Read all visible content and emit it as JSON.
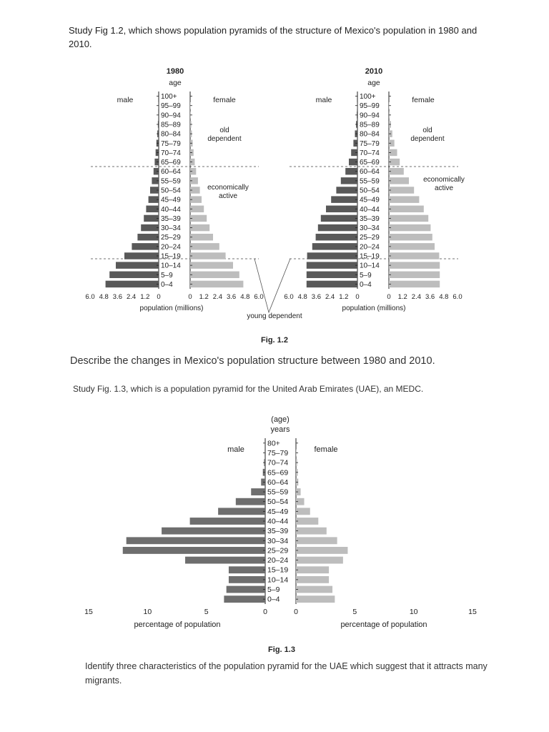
{
  "intro_text": "Study Fig 1.2, which shows population pyramids of the structure of Mexico's population in 1980 and 2010.",
  "question_1": "Describe the changes in Mexico's population structure between 1980 and 2010.",
  "study_2": "Study Fig. 1.3, which is a population pyramid for the United Arab Emirates (UAE), an MEDC.",
  "question_2": "Identify three characteristics of the population pyramid for the UAE which suggest that it attracts many migrants.",
  "fig12": {
    "caption": "Fig. 1.2",
    "age_label": "age",
    "male_label": "male",
    "female_label": "female",
    "old_dependent_1": "old",
    "old_dependent_2": "dependent",
    "econ_active_1": "economically",
    "econ_active_2": "active",
    "young_dependent": "young dependent",
    "xaxis_label": "population (millions)"
  },
  "fig13": {
    "caption": "Fig. 1.3",
    "age_label_1": "(age)",
    "age_label_2": "years",
    "male_label": "male",
    "female_label": "female",
    "xaxis_label": "percentage of population"
  },
  "chart_data": [
    {
      "type": "bar",
      "title": "1980",
      "categories": [
        "100+",
        "95–99",
        "90–94",
        "85–89",
        "80–84",
        "75–79",
        "70–74",
        "65–69",
        "60–64",
        "55–59",
        "50–54",
        "45–49",
        "40–44",
        "35–39",
        "30–34",
        "25–29",
        "20–24",
        "15–19",
        "10–14",
        "5–9",
        "0–4"
      ],
      "series": [
        {
          "name": "male",
          "values": [
            0.0,
            0.02,
            0.04,
            0.07,
            0.12,
            0.2,
            0.27,
            0.35,
            0.45,
            0.6,
            0.75,
            0.9,
            1.1,
            1.3,
            1.55,
            1.85,
            2.35,
            3.0,
            3.75,
            4.3,
            4.65
          ]
        },
        {
          "name": "female",
          "values": [
            0.0,
            0.03,
            0.05,
            0.1,
            0.15,
            0.22,
            0.3,
            0.4,
            0.52,
            0.68,
            0.85,
            1.0,
            1.2,
            1.45,
            1.7,
            2.0,
            2.55,
            3.1,
            3.75,
            4.3,
            4.65
          ]
        }
      ],
      "xticks": [
        "6.0",
        "4.8",
        "3.6",
        "2.4",
        "1.2",
        "0",
        "0",
        "1.2",
        "2.4",
        "3.6",
        "4.8",
        "6.0"
      ],
      "xlim": [
        0,
        6.0
      ],
      "xlabel": "population (millions)"
    },
    {
      "type": "bar",
      "title": "2010",
      "categories": [
        "100+",
        "95–99",
        "90–94",
        "85–89",
        "80–84",
        "75–79",
        "70–74",
        "65–69",
        "60–64",
        "55–59",
        "50–54",
        "45–49",
        "40–44",
        "35–39",
        "30–34",
        "25–29",
        "20–24",
        "15–19",
        "10–14",
        "5–9",
        "0–4"
      ],
      "series": [
        {
          "name": "male",
          "values": [
            0.0,
            0.02,
            0.06,
            0.12,
            0.22,
            0.35,
            0.55,
            0.75,
            1.05,
            1.45,
            1.85,
            2.3,
            2.75,
            3.2,
            3.45,
            3.65,
            3.95,
            4.4,
            4.45,
            4.45,
            4.45
          ]
        },
        {
          "name": "female",
          "values": [
            0.0,
            0.03,
            0.08,
            0.18,
            0.3,
            0.48,
            0.72,
            0.95,
            1.3,
            1.75,
            2.2,
            2.65,
            3.05,
            3.45,
            3.65,
            3.8,
            4.0,
            4.4,
            4.45,
            4.45,
            4.45
          ]
        }
      ],
      "xticks": [
        "6.0",
        "4.8",
        "3.6",
        "2.4",
        "1.2",
        "0",
        "0",
        "1.2",
        "2.4",
        "3.6",
        "4.8",
        "6.0"
      ],
      "xlim": [
        0,
        6.0
      ],
      "xlabel": "population (millions)"
    },
    {
      "type": "bar",
      "title": "",
      "categories": [
        "80+",
        "75–79",
        "70–74",
        "65–69",
        "60–64",
        "55–59",
        "50–54",
        "45–49",
        "40–44",
        "35–39",
        "30–34",
        "25–29",
        "20–24",
        "15–19",
        "10–14",
        "5–9",
        "0–4"
      ],
      "series": [
        {
          "name": "male",
          "values": [
            0.0,
            0.05,
            0.1,
            0.2,
            0.35,
            1.2,
            2.5,
            4.0,
            6.4,
            8.8,
            11.8,
            12.1,
            6.8,
            3.1,
            3.1,
            3.3,
            3.5
          ]
        },
        {
          "name": "female",
          "values": [
            0.0,
            0.05,
            0.1,
            0.15,
            0.2,
            0.4,
            0.7,
            1.2,
            1.9,
            2.6,
            3.5,
            4.4,
            4.0,
            2.8,
            2.8,
            3.1,
            3.3
          ]
        }
      ],
      "xticks_male": [
        "15",
        "10",
        "5",
        "0"
      ],
      "xticks_female": [
        "0",
        "5",
        "10",
        "15"
      ],
      "xlim": [
        0,
        15
      ],
      "xlabel": "percentage of population"
    }
  ]
}
